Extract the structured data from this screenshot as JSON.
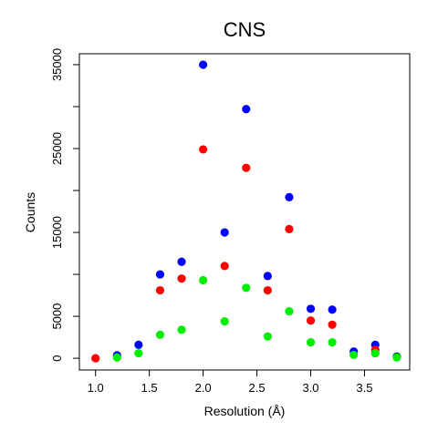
{
  "chart_data": {
    "type": "scatter",
    "title": "CNS",
    "xlabel": "Resolution (Å)",
    "ylabel": "Counts",
    "xlim": [
      0.85,
      3.92
    ],
    "ylim": [
      -1400,
      36300
    ],
    "x_ticks": [
      1.0,
      1.5,
      2.0,
      2.5,
      3.0,
      3.5
    ],
    "x_tick_labels": [
      "1.0",
      "1.5",
      "2.0",
      "2.5",
      "3.0",
      "3.5"
    ],
    "y_ticks": [
      0,
      5000,
      10000,
      15000,
      20000,
      25000,
      30000,
      35000
    ],
    "y_tick_labels": [
      "0",
      "5000",
      "",
      "15000",
      "",
      "25000",
      "",
      "35000"
    ],
    "grid": false,
    "legend": "none",
    "series": [
      {
        "color": "#0000ff",
        "x": [
          1.2,
          1.4,
          1.6,
          1.8,
          2.0,
          2.2,
          2.4,
          2.6,
          2.8,
          3.0,
          3.2,
          3.4,
          3.6,
          3.8
        ],
        "y": [
          350,
          1600,
          10000,
          11500,
          35000,
          15000,
          29700,
          9800,
          19200,
          5900,
          5800,
          800,
          1600,
          200
        ]
      },
      {
        "color": "#ff0000",
        "x": [
          1.0,
          1.6,
          1.8,
          2.0,
          2.2,
          2.4,
          2.6,
          2.8,
          3.0,
          3.2,
          3.6
        ],
        "y": [
          0,
          8100,
          9500,
          24900,
          11000,
          22700,
          8100,
          15400,
          4500,
          4000,
          1000
        ]
      },
      {
        "color": "#00ee00",
        "x": [
          1.2,
          1.4,
          1.6,
          1.8,
          2.0,
          2.2,
          2.4,
          2.6,
          2.8,
          3.0,
          3.2,
          3.4,
          3.6,
          3.8
        ],
        "y": [
          100,
          600,
          2800,
          3400,
          9300,
          4400,
          8400,
          2600,
          5600,
          1900,
          1900,
          400,
          600,
          100
        ]
      }
    ]
  }
}
